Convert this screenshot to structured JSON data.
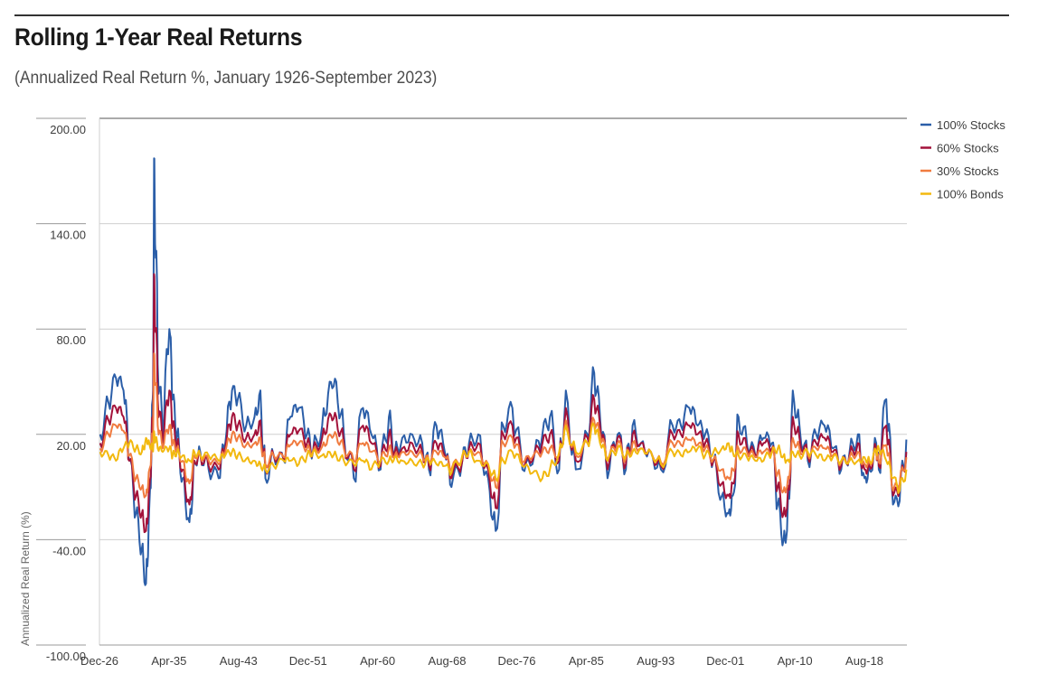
{
  "chart_data": {
    "type": "line",
    "title": "Rolling 1-Year Real Returns",
    "subtitle": "(Annualized Real Return %, January 1926-September 2023)",
    "ylabel": "Annualized Real Return (%)",
    "xlabel": "",
    "ylim": [
      -100,
      200
    ],
    "yticks": [
      -100,
      -40,
      20,
      80,
      140,
      200
    ],
    "ytick_labels": [
      "-100.00",
      "-40.00",
      "20.00",
      "80.00",
      "140.00",
      "200.00"
    ],
    "x_range": [
      1926.92,
      2023.67
    ],
    "xticks": [
      1926.92,
      1935.25,
      1943.58,
      1951.92,
      1960.25,
      1968.58,
      1976.92,
      1985.25,
      1993.58,
      2001.92,
      2010.25,
      2018.58
    ],
    "xtick_labels": [
      "Dec-26",
      "Apr-35",
      "Aug-43",
      "Dec-51",
      "Apr-60",
      "Aug-68",
      "Dec-76",
      "Apr-85",
      "Aug-93",
      "Dec-01",
      "Apr-10",
      "Aug-18"
    ],
    "grid": true,
    "legend_position": "top-right",
    "series": [
      {
        "name": "100% Stocks",
        "color": "#2b5ea8",
        "x": [
          1927.0,
          1928.0,
          1928.9,
          1929.8,
          1930.5,
          1931.3,
          1932.0,
          1932.5,
          1932.9,
          1933.3,
          1933.5,
          1933.9,
          1934.5,
          1935.3,
          1935.7,
          1936.2,
          1936.9,
          1937.7,
          1938.3,
          1939.0,
          1940.0,
          1941.2,
          1942.0,
          1942.8,
          1943.5,
          1944.5,
          1945.5,
          1946.2,
          1946.8,
          1947.8,
          1949.0,
          1949.8,
          1950.8,
          1951.8,
          1952.5,
          1953.6,
          1954.5,
          1955.3,
          1956.2,
          1957.4,
          1958.5,
          1959.5,
          1960.6,
          1961.6,
          1962.3,
          1963.2,
          1964.4,
          1965.6,
          1966.4,
          1967.3,
          1968.3,
          1969.1,
          1970.4,
          1971.2,
          1972.3,
          1973.5,
          1974.4,
          1975.3,
          1976.4,
          1977.6,
          1978.8,
          1980.0,
          1980.9,
          1982.0,
          1982.8,
          1984.0,
          1985.4,
          1986.2,
          1986.9,
          1987.8,
          1989.0,
          1990.0,
          1990.8,
          1991.8,
          1993.0,
          1994.2,
          1995.6,
          1996.6,
          1997.6,
          1998.6,
          1999.5,
          2000.5,
          2001.5,
          2002.3,
          2002.8,
          2003.5,
          2004.5,
          2005.5,
          2006.5,
          2007.5,
          2008.2,
          2008.9,
          2009.3,
          2010.0,
          2010.8,
          2011.8,
          2012.8,
          2013.8,
          2014.8,
          2015.8,
          2016.8,
          2017.8,
          2018.6,
          2019.2,
          2020.0,
          2020.3,
          2021.2,
          2022.0,
          2022.8,
          2023.6
        ],
        "y": [
          20,
          38,
          52,
          45,
          5,
          -25,
          -45,
          -65,
          -20,
          40,
          177,
          60,
          20,
          80,
          40,
          20,
          -5,
          -30,
          5,
          10,
          0,
          -5,
          15,
          45,
          40,
          25,
          30,
          45,
          -5,
          8,
          5,
          30,
          35,
          20,
          10,
          25,
          50,
          50,
          20,
          -5,
          35,
          20,
          0,
          30,
          10,
          18,
          20,
          15,
          0,
          25,
          10,
          -10,
          5,
          15,
          20,
          -5,
          -35,
          25,
          35,
          0,
          3,
          20,
          30,
          0,
          45,
          0,
          20,
          55,
          30,
          -5,
          20,
          0,
          25,
          15,
          10,
          0,
          25,
          25,
          35,
          25,
          20,
          5,
          -15,
          -25,
          -15,
          30,
          15,
          8,
          18,
          15,
          -20,
          -40,
          -35,
          45,
          25,
          5,
          20,
          25,
          12,
          0,
          10,
          20,
          -5,
          0,
          15,
          0,
          40,
          -20,
          -18,
          17
        ]
      },
      {
        "name": "60% Stocks",
        "color": "#a3123a",
        "x": [
          1927.0,
          1928.0,
          1928.9,
          1929.8,
          1930.5,
          1931.3,
          1932.0,
          1932.5,
          1932.9,
          1933.3,
          1933.5,
          1933.9,
          1934.5,
          1935.3,
          1935.7,
          1936.2,
          1936.9,
          1937.7,
          1938.3,
          1939.0,
          1940.0,
          1941.2,
          1942.0,
          1942.8,
          1943.5,
          1944.5,
          1945.5,
          1946.2,
          1946.8,
          1947.8,
          1949.0,
          1949.8,
          1950.8,
          1951.8,
          1952.5,
          1953.6,
          1954.5,
          1955.3,
          1956.2,
          1957.4,
          1958.5,
          1959.5,
          1960.6,
          1961.6,
          1962.3,
          1963.2,
          1964.4,
          1965.6,
          1966.4,
          1967.3,
          1968.3,
          1969.1,
          1970.4,
          1971.2,
          1972.3,
          1973.5,
          1974.4,
          1975.3,
          1976.4,
          1977.6,
          1978.8,
          1980.0,
          1980.9,
          1982.0,
          1982.8,
          1984.0,
          1985.4,
          1986.2,
          1986.9,
          1987.8,
          1989.0,
          1990.0,
          1990.8,
          1991.8,
          1993.0,
          1994.2,
          1995.6,
          1996.6,
          1997.6,
          1998.6,
          1999.5,
          2000.5,
          2001.5,
          2002.3,
          2002.8,
          2003.5,
          2004.5,
          2005.5,
          2006.5,
          2007.5,
          2008.2,
          2008.9,
          2009.3,
          2010.0,
          2010.8,
          2011.8,
          2012.8,
          2013.8,
          2014.8,
          2015.8,
          2016.8,
          2017.8,
          2018.6,
          2019.2,
          2020.0,
          2020.3,
          2021.2,
          2022.0,
          2022.8,
          2023.6
        ],
        "y": [
          15,
          28,
          35,
          30,
          5,
          -15,
          -25,
          -35,
          -10,
          30,
          110,
          40,
          15,
          45,
          25,
          15,
          0,
          -20,
          5,
          8,
          2,
          0,
          12,
          30,
          25,
          18,
          20,
          28,
          0,
          8,
          6,
          20,
          22,
          15,
          10,
          18,
          32,
          30,
          15,
          0,
          25,
          15,
          2,
          20,
          10,
          12,
          15,
          10,
          2,
          15,
          8,
          -5,
          5,
          12,
          15,
          0,
          -22,
          20,
          25,
          2,
          5,
          15,
          20,
          5,
          35,
          5,
          18,
          40,
          25,
          0,
          18,
          3,
          20,
          15,
          10,
          2,
          20,
          20,
          25,
          20,
          15,
          5,
          -8,
          -15,
          -8,
          20,
          12,
          8,
          15,
          12,
          -10,
          -25,
          -22,
          30,
          18,
          7,
          15,
          18,
          10,
          2,
          8,
          15,
          0,
          2,
          12,
          2,
          25,
          -15,
          -12,
          10
        ]
      },
      {
        "name": "30% Stocks",
        "color": "#f07b3f",
        "x": [
          1927.0,
          1928.0,
          1928.9,
          1929.8,
          1930.5,
          1931.3,
          1932.0,
          1932.5,
          1932.9,
          1933.3,
          1933.5,
          1933.9,
          1934.5,
          1935.3,
          1935.7,
          1936.2,
          1936.9,
          1937.7,
          1938.3,
          1939.0,
          1940.0,
          1941.2,
          1942.0,
          1942.8,
          1943.5,
          1944.5,
          1945.5,
          1946.2,
          1946.8,
          1947.8,
          1949.0,
          1949.8,
          1950.8,
          1951.8,
          1952.5,
          1953.6,
          1954.5,
          1955.3,
          1956.2,
          1957.4,
          1958.5,
          1959.5,
          1960.6,
          1961.6,
          1962.3,
          1963.2,
          1964.4,
          1965.6,
          1966.4,
          1967.3,
          1968.3,
          1969.1,
          1970.4,
          1971.2,
          1972.3,
          1973.5,
          1974.4,
          1975.3,
          1976.4,
          1977.6,
          1978.8,
          1980.0,
          1980.9,
          1982.0,
          1982.8,
          1984.0,
          1985.4,
          1986.2,
          1986.9,
          1987.8,
          1989.0,
          1990.0,
          1990.8,
          1991.8,
          1993.0,
          1994.2,
          1995.6,
          1996.6,
          1997.6,
          1998.6,
          1999.5,
          2000.5,
          2001.5,
          2002.3,
          2002.8,
          2003.5,
          2004.5,
          2005.5,
          2006.5,
          2007.5,
          2008.2,
          2008.9,
          2009.3,
          2010.0,
          2010.8,
          2011.8,
          2012.8,
          2013.8,
          2014.8,
          2015.8,
          2016.8,
          2017.8,
          2018.6,
          2019.2,
          2020.0,
          2020.3,
          2021.2,
          2022.0,
          2022.8,
          2023.6
        ],
        "y": [
          12,
          20,
          25,
          22,
          8,
          -5,
          -10,
          -15,
          0,
          20,
          65,
          25,
          12,
          25,
          15,
          12,
          5,
          -8,
          8,
          8,
          5,
          3,
          10,
          20,
          18,
          14,
          15,
          18,
          3,
          8,
          7,
          14,
          15,
          12,
          10,
          13,
          20,
          20,
          12,
          5,
          15,
          10,
          5,
          12,
          8,
          10,
          10,
          8,
          5,
          10,
          7,
          0,
          7,
          10,
          10,
          3,
          -10,
          15,
          18,
          4,
          7,
          10,
          12,
          8,
          28,
          8,
          15,
          28,
          20,
          5,
          15,
          6,
          15,
          12,
          10,
          4,
          15,
          14,
          17,
          14,
          12,
          6,
          0,
          -5,
          0,
          12,
          10,
          7,
          10,
          10,
          -2,
          -12,
          -10,
          18,
          12,
          8,
          12,
          12,
          8,
          4,
          7,
          10,
          3,
          4,
          10,
          4,
          14,
          -12,
          -8,
          7
        ]
      },
      {
        "name": "100% Bonds",
        "color": "#f2b90f",
        "x": [
          1927.0,
          1928.0,
          1928.9,
          1929.8,
          1930.5,
          1931.3,
          1932.0,
          1932.5,
          1932.9,
          1933.3,
          1933.5,
          1933.9,
          1934.5,
          1935.3,
          1935.7,
          1936.2,
          1936.9,
          1937.7,
          1938.3,
          1939.0,
          1940.0,
          1941.2,
          1942.0,
          1942.8,
          1943.5,
          1944.5,
          1945.5,
          1946.2,
          1946.8,
          1947.8,
          1949.0,
          1949.8,
          1950.8,
          1951.8,
          1952.5,
          1953.6,
          1954.5,
          1955.3,
          1956.2,
          1957.4,
          1958.5,
          1959.5,
          1960.6,
          1961.6,
          1962.3,
          1963.2,
          1964.4,
          1965.6,
          1966.4,
          1967.3,
          1968.3,
          1969.1,
          1970.4,
          1971.2,
          1972.3,
          1973.5,
          1974.4,
          1975.3,
          1976.4,
          1977.6,
          1978.8,
          1980.0,
          1980.9,
          1982.0,
          1982.8,
          1984.0,
          1985.4,
          1986.2,
          1986.9,
          1987.8,
          1989.0,
          1990.0,
          1990.8,
          1991.8,
          1993.0,
          1994.2,
          1995.6,
          1996.6,
          1997.6,
          1998.6,
          1999.5,
          2000.5,
          2001.5,
          2002.3,
          2002.8,
          2003.5,
          2004.5,
          2005.5,
          2006.5,
          2007.5,
          2008.2,
          2008.9,
          2009.3,
          2010.0,
          2010.8,
          2011.8,
          2012.8,
          2013.8,
          2014.8,
          2015.8,
          2016.8,
          2017.8,
          2018.6,
          2019.2,
          2020.0,
          2020.3,
          2021.2,
          2022.0,
          2022.8,
          2023.6
        ],
        "y": [
          10,
          8,
          5,
          12,
          15,
          12,
          10,
          18,
          15,
          12,
          20,
          12,
          10,
          12,
          8,
          10,
          8,
          5,
          10,
          8,
          8,
          5,
          8,
          10,
          8,
          6,
          5,
          3,
          0,
          2,
          5,
          5,
          3,
          8,
          10,
          8,
          10,
          8,
          5,
          3,
          5,
          0,
          5,
          5,
          7,
          5,
          5,
          3,
          5,
          3,
          2,
          -2,
          8,
          10,
          5,
          3,
          -5,
          5,
          10,
          2,
          -2,
          -5,
          0,
          10,
          25,
          10,
          15,
          25,
          15,
          5,
          12,
          8,
          10,
          12,
          10,
          3,
          10,
          8,
          10,
          12,
          8,
          10,
          12,
          15,
          10,
          8,
          7,
          5,
          5,
          10,
          12,
          8,
          5,
          10,
          8,
          10,
          8,
          5,
          7,
          5,
          5,
          5,
          7,
          5,
          10,
          12,
          5,
          -5,
          -12,
          0
        ]
      }
    ]
  }
}
